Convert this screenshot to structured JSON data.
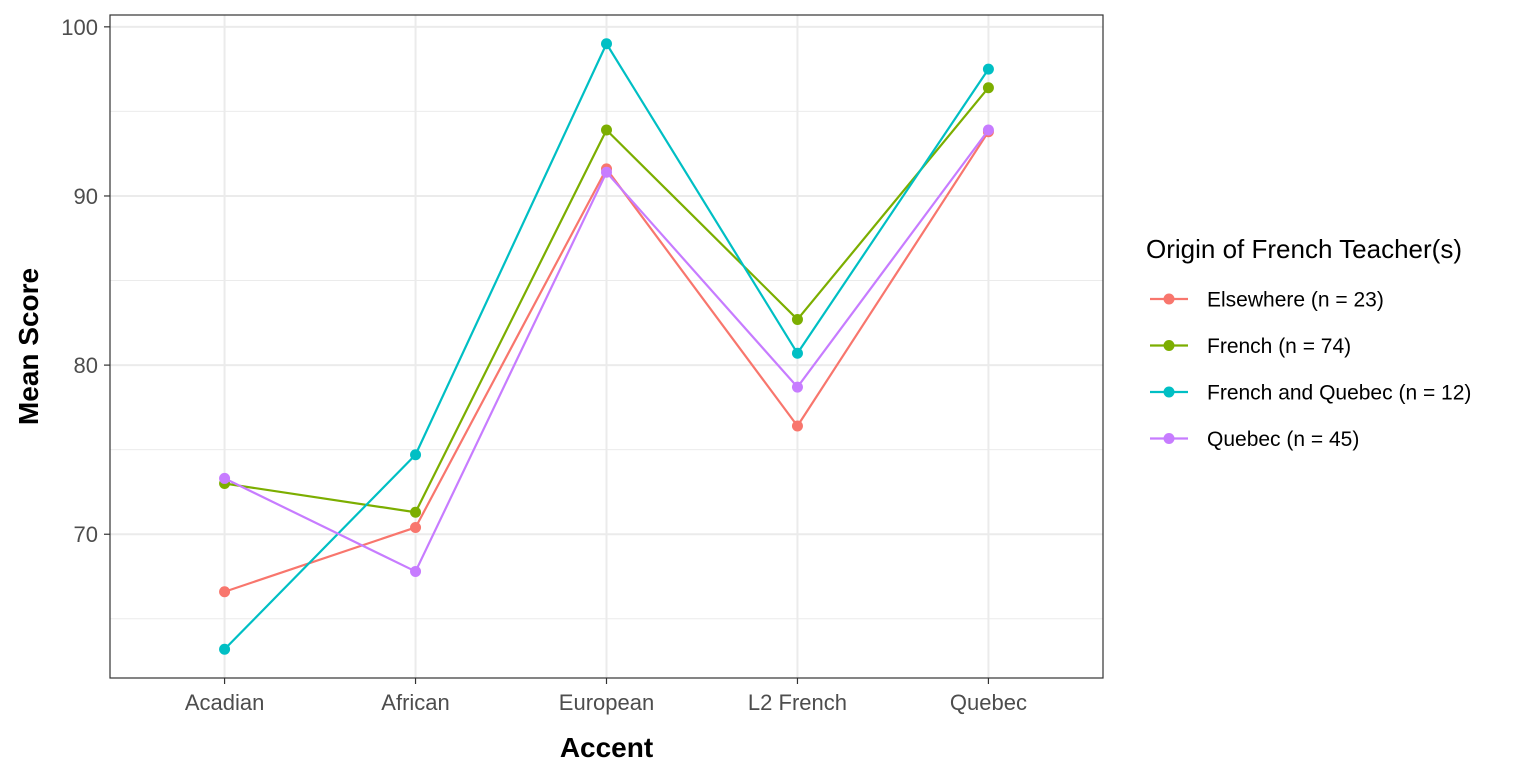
{
  "chart_data": {
    "type": "line",
    "title": "",
    "xlabel": "Accent",
    "ylabel": "Mean Score",
    "categories": [
      "Acadian",
      "African",
      "European",
      "L2 French",
      "Quebec"
    ],
    "ylim": [
      61.5,
      100.7
    ],
    "yticks": [
      70,
      80,
      90,
      100
    ],
    "grid": true,
    "legend_title": "Origin of French Teacher(s)",
    "legend_position": "right",
    "series": [
      {
        "name": "Elsewhere (n = 23)",
        "color": "#F8766D",
        "values": [
          66.6,
          70.4,
          91.6,
          76.4,
          93.8
        ]
      },
      {
        "name": "French (n = 74)",
        "color": "#7CAE00",
        "values": [
          73.0,
          71.3,
          93.9,
          82.7,
          96.4
        ]
      },
      {
        "name": "French and Quebec (n = 12)",
        "color": "#00BFC4",
        "values": [
          63.2,
          74.7,
          99.0,
          80.7,
          97.5
        ]
      },
      {
        "name": "Quebec (n = 45)",
        "color": "#C77CFF",
        "values": [
          73.3,
          67.8,
          91.4,
          78.7,
          93.9
        ]
      }
    ]
  }
}
